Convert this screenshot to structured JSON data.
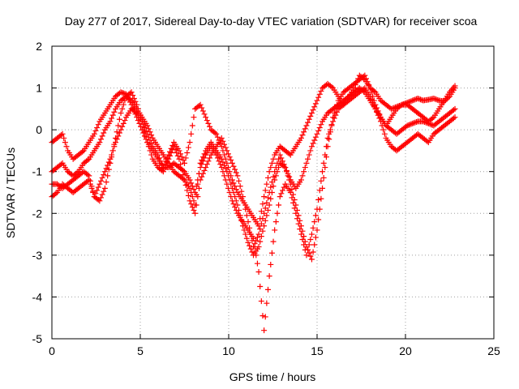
{
  "chart_data": {
    "type": "scatter",
    "title": "Day 277 of 2017, Sidereal Day-to-day VTEC variation (SDTVAR) for receiver scoa",
    "xlabel": "GPS time / hours",
    "ylabel": "SDTVAR / TECUs",
    "xlim": [
      0,
      25
    ],
    "ylim": [
      -5,
      2
    ],
    "xticks": [
      "0",
      "5",
      "10",
      "15",
      "20",
      "25"
    ],
    "yticks": [
      "-5",
      "-4",
      "-3",
      "-2",
      "-1",
      "0",
      "1",
      "2"
    ],
    "grid": true,
    "legend": "none",
    "marker": "plus",
    "color": "#ff0000",
    "series": [
      {
        "x": [
          0.0,
          0.3,
          0.6,
          0.9,
          1.2,
          1.5,
          1.8,
          2.1,
          2.4,
          2.7,
          3.0,
          3.3,
          3.6,
          3.9,
          4.2,
          4.5,
          4.8,
          5.1,
          5.4,
          5.7,
          6.0,
          6.3,
          6.6,
          6.9,
          7.2,
          7.5,
          7.8,
          8.1,
          8.4,
          8.7,
          9.0,
          9.3,
          9.6,
          9.9,
          10.2,
          10.5,
          10.8,
          11.1,
          11.4,
          11.7,
          12.0,
          12.3,
          12.6,
          12.9,
          13.2,
          13.5,
          13.8,
          14.1,
          14.4,
          14.7,
          15.0,
          15.3,
          15.6,
          15.9,
          16.2,
          16.5,
          16.8,
          17.1,
          17.4,
          17.7,
          18.0,
          18.3,
          18.6,
          18.9,
          19.2,
          19.5,
          19.8,
          20.1,
          20.4,
          20.7,
          21.0,
          21.3,
          21.6,
          21.9,
          22.2,
          22.5,
          22.8
        ],
        "y": [
          -0.3,
          -0.2,
          -0.1,
          -0.5,
          -0.7,
          -0.6,
          -0.5,
          -0.3,
          -0.1,
          0.2,
          0.4,
          0.6,
          0.8,
          0.9,
          0.85,
          0.6,
          0.3,
          0.0,
          -0.3,
          -0.5,
          -0.7,
          -0.9,
          -0.6,
          -0.3,
          -0.5,
          -0.8,
          -0.3,
          0.5,
          0.6,
          0.3,
          0.0,
          -0.1,
          -0.4,
          -0.8,
          -1.2,
          -1.5,
          -1.7,
          -1.9,
          -2.1,
          -2.3,
          -1.6,
          -1.0,
          -0.6,
          -0.4,
          -0.5,
          -0.6,
          -0.4,
          -0.2,
          0.1,
          0.4,
          0.7,
          1.0,
          1.1,
          1.0,
          0.8,
          0.6,
          0.8,
          1.0,
          1.3,
          1.2,
          1.0,
          0.9,
          0.7,
          0.6,
          0.5,
          0.55,
          0.6,
          0.65,
          0.7,
          0.75,
          0.7,
          0.72,
          0.75,
          0.7,
          0.68,
          0.8,
          1.0
        ]
      },
      {
        "x": [
          0.0,
          0.3,
          0.6,
          0.9,
          1.2,
          1.5,
          1.8,
          2.1,
          2.4,
          2.7,
          3.0,
          3.3,
          3.6,
          3.9,
          4.2,
          4.5,
          4.8,
          5.1,
          5.4,
          5.7,
          6.0,
          6.3,
          6.6,
          6.9,
          7.2,
          7.5,
          7.8,
          8.1,
          8.4,
          8.7,
          9.0,
          9.3,
          9.6,
          9.9,
          10.2,
          10.5,
          10.8,
          11.1,
          11.4,
          11.7,
          12.0,
          12.3,
          12.6,
          12.9,
          13.2,
          13.5,
          13.8,
          14.1,
          14.4,
          14.7,
          15.0,
          15.3,
          15.6,
          15.9,
          16.2,
          16.5,
          16.8,
          17.1,
          17.4,
          17.7,
          18.0,
          18.3,
          18.6,
          18.9,
          19.2,
          19.5,
          19.8,
          20.1,
          20.4,
          20.7,
          21.0,
          21.3,
          21.6,
          21.9,
          22.2,
          22.5,
          22.8
        ],
        "y": [
          -1.0,
          -0.9,
          -0.8,
          -1.0,
          -1.1,
          -1.0,
          -0.8,
          -0.7,
          -0.5,
          -0.3,
          0.0,
          0.2,
          0.5,
          0.7,
          0.8,
          0.7,
          0.5,
          0.3,
          0.1,
          -0.2,
          -0.4,
          -0.6,
          -0.8,
          -1.0,
          -1.1,
          -1.2,
          -1.4,
          -1.8,
          -0.8,
          -0.5,
          -0.3,
          -0.5,
          -0.7,
          -1.0,
          -1.4,
          -1.8,
          -2.3,
          -2.7,
          -3.0,
          -2.8,
          -2.3,
          -1.8,
          -1.2,
          -0.8,
          -0.9,
          -1.2,
          -1.4,
          -1.2,
          -0.8,
          -0.4,
          -0.1,
          0.2,
          0.4,
          0.5,
          0.6,
          0.7,
          0.8,
          0.9,
          1.0,
          0.9,
          0.7,
          0.5,
          0.3,
          0.1,
          0.0,
          -0.1,
          0.0,
          0.1,
          0.15,
          0.2,
          0.2,
          0.15,
          0.1,
          0.2,
          0.3,
          0.4,
          0.5
        ]
      },
      {
        "x": [
          0.0,
          0.3,
          0.6,
          0.9,
          1.2,
          1.5,
          1.8,
          2.1,
          2.4,
          2.7,
          3.0,
          3.3,
          3.6,
          3.9,
          4.2,
          4.5,
          4.8,
          5.1,
          5.4,
          5.7,
          6.0,
          6.3,
          6.6,
          6.9,
          7.2,
          7.5,
          7.8,
          8.1,
          8.4,
          8.7,
          9.0,
          9.3,
          9.6,
          9.9,
          10.2,
          10.5,
          10.8,
          11.1,
          11.4,
          11.7,
          12.0,
          12.3,
          12.6,
          12.9,
          13.2,
          13.5,
          13.8,
          14.1,
          14.4,
          14.7,
          15.0,
          15.3,
          15.6,
          15.9,
          16.2,
          16.5,
          16.8,
          17.1,
          17.4,
          17.7,
          18.0,
          18.3,
          18.6,
          18.9,
          19.2,
          19.5,
          19.8,
          20.1,
          20.4,
          20.7,
          21.0,
          21.3,
          21.6,
          21.9,
          22.2,
          22.5,
          22.8
        ],
        "y": [
          -1.3,
          -1.3,
          -1.4,
          -1.3,
          -1.2,
          -1.1,
          -1.0,
          -1.1,
          -1.6,
          -1.3,
          -1.0,
          -0.7,
          -0.3,
          0.0,
          0.3,
          0.5,
          0.4,
          0.2,
          -0.1,
          -0.4,
          -0.6,
          -0.9,
          -0.9,
          -0.8,
          -0.9,
          -1.0,
          -1.2,
          -1.5,
          -0.9,
          -0.6,
          -0.4,
          -0.6,
          -0.9,
          -1.3,
          -1.7,
          -2.0,
          -2.2,
          -2.4,
          -2.6,
          -3.4,
          -4.8,
          -3.5,
          -2.4,
          -1.6,
          -1.3,
          -1.5,
          -2.0,
          -2.5,
          -3.0,
          -2.5,
          -1.9,
          -1.0,
          -0.2,
          0.2,
          0.5,
          0.6,
          0.7,
          0.8,
          0.9,
          1.0,
          0.8,
          0.5,
          0.2,
          -0.2,
          -0.4,
          -0.5,
          -0.4,
          -0.3,
          -0.2,
          -0.1,
          -0.2,
          -0.3,
          -0.1,
          0.0,
          0.1,
          0.2,
          0.3
        ]
      },
      {
        "x": [
          0.0,
          0.3,
          0.6,
          0.9,
          1.2,
          1.5,
          1.8,
          2.1,
          2.4,
          2.7,
          3.0,
          3.3,
          3.6,
          3.9,
          4.2,
          4.5,
          4.8,
          5.1,
          5.4,
          5.7,
          6.0,
          6.3,
          6.6,
          6.9,
          7.2,
          7.5,
          7.8,
          8.1,
          8.4,
          8.7,
          9.0,
          9.3,
          9.6,
          9.9,
          10.2,
          10.5,
          10.8,
          11.1,
          11.4,
          11.7,
          12.0,
          12.3,
          12.6,
          12.9,
          13.2,
          13.5,
          13.8,
          14.1,
          14.4,
          14.7,
          15.0,
          15.3,
          15.6,
          15.9,
          16.2,
          16.5,
          16.8,
          17.1,
          17.4,
          17.7,
          18.0,
          18.3,
          18.6,
          18.9,
          19.2,
          19.5,
          19.8,
          20.1,
          20.4,
          20.7,
          21.0,
          21.3,
          21.6,
          21.9,
          22.2,
          22.5,
          22.8
        ],
        "y": [
          -1.6,
          -1.5,
          -1.3,
          -1.4,
          -1.5,
          -1.4,
          -1.3,
          -1.2,
          -1.6,
          -1.7,
          -1.4,
          -0.8,
          -0.2,
          0.4,
          0.8,
          0.9,
          0.6,
          0.2,
          -0.3,
          -0.7,
          -0.9,
          -1.0,
          -0.7,
          -0.4,
          -0.7,
          -1.2,
          -1.7,
          -2.0,
          -1.2,
          -0.9,
          -0.6,
          -0.4,
          -0.2,
          -0.5,
          -0.8,
          -1.1,
          -1.6,
          -2.2,
          -2.8,
          -2.5,
          -2.0,
          -1.5,
          -1.0,
          -0.6,
          -0.9,
          -1.3,
          -1.8,
          -2.3,
          -2.8,
          -3.1,
          -2.4,
          -1.4,
          -0.4,
          0.3,
          0.7,
          0.9,
          1.0,
          1.1,
          1.2,
          1.3,
          1.0,
          0.6,
          0.3,
          0.1,
          0.3,
          0.5,
          0.6,
          0.6,
          0.5,
          0.4,
          0.3,
          0.2,
          0.3,
          0.5,
          0.7,
          0.9,
          1.05
        ]
      }
    ]
  }
}
